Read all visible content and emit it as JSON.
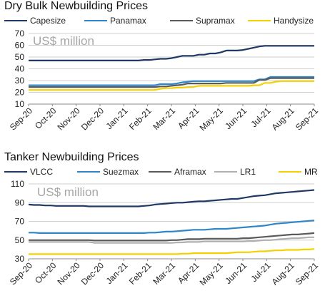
{
  "colors": {
    "dark_navy": "#1f3864",
    "blue": "#2e86c8",
    "dark_gray": "#5a5a5a",
    "light_gray": "#b0b0b0",
    "yellow": "#f5d000",
    "grid": "#cfcfcf",
    "axis": "#888888"
  },
  "chart_data": [
    {
      "type": "line",
      "title": "Dry Bulk Newbuilding Prices",
      "unit_label": "US$ million",
      "x_tick_labels": [
        "Sep-20",
        "Oct-20",
        "Nov-20",
        "Dec-20",
        "Jan-21",
        "Feb-21",
        "Mar-21",
        "Apr-21",
        "May-21",
        "Jun-21",
        "Jul-21",
        "Aug-21",
        "Sep-21"
      ],
      "y_ticks": [
        10,
        20,
        30,
        40,
        50,
        60,
        70
      ],
      "ylim": [
        10,
        70
      ],
      "grid": "horizontal",
      "legend_position": "top",
      "series": [
        {
          "name": "Capesize",
          "color": "#1f3864",
          "values": [
            47.0,
            47.0,
            47.0,
            47.0,
            47.0,
            47.0,
            47.0,
            47.0,
            47.0,
            47.0,
            47.0,
            47.0,
            47.0,
            47.0,
            47.0,
            47.0,
            47.0,
            47.0,
            47.0,
            47.0,
            47.0,
            47.5,
            47.5,
            48.0,
            48.5,
            48.5,
            49.0,
            50.0,
            51.0,
            51.0,
            51.0,
            52.0,
            52.0,
            53.0,
            53.0,
            54.0,
            55.5,
            55.5,
            55.5,
            56.0,
            57.0,
            58.0,
            59.0,
            59.5,
            59.5,
            59.5,
            59.5,
            59.5,
            59.5,
            59.5,
            59.5,
            59.5,
            59.5
          ]
        },
        {
          "name": "Panamax",
          "color": "#2e86c8",
          "values": [
            26.0,
            26.0,
            26.0,
            26.0,
            26.0,
            26.0,
            26.0,
            26.0,
            26.0,
            26.0,
            26.0,
            26.0,
            26.0,
            26.0,
            26.0,
            26.0,
            26.0,
            26.0,
            26.0,
            26.0,
            26.0,
            26.0,
            26.0,
            26.0,
            27.0,
            27.0,
            27.0,
            27.5,
            28.5,
            29.0,
            29.5,
            29.5,
            29.5,
            29.5,
            29.5,
            29.5,
            29.5,
            29.5,
            29.5,
            29.5,
            29.5,
            29.5,
            31.0,
            31.0,
            33.0,
            33.0,
            33.0,
            33.0,
            33.0,
            33.0,
            33.0,
            33.0,
            33.0
          ]
        },
        {
          "name": "Supramax",
          "color": "#5a5a5a",
          "values": [
            24.5,
            24.5,
            24.5,
            24.5,
            24.5,
            24.5,
            24.5,
            24.5,
            24.5,
            24.5,
            24.5,
            24.5,
            24.5,
            24.5,
            24.5,
            24.5,
            24.5,
            24.5,
            24.5,
            24.5,
            24.5,
            24.5,
            24.5,
            24.5,
            25.0,
            25.0,
            25.5,
            26.0,
            26.5,
            27.5,
            27.5,
            27.5,
            27.5,
            27.5,
            27.5,
            27.5,
            28.0,
            28.0,
            28.0,
            28.0,
            28.0,
            28.0,
            30.5,
            30.5,
            32.0,
            32.0,
            32.0,
            32.0,
            32.0,
            32.0,
            32.0,
            32.0,
            32.0
          ]
        },
        {
          "name": "Handysize",
          "color": "#f5d000",
          "values": [
            22.0,
            22.0,
            22.0,
            22.0,
            22.0,
            22.0,
            22.0,
            22.0,
            22.0,
            22.0,
            22.0,
            22.0,
            22.0,
            22.0,
            22.0,
            22.0,
            22.0,
            22.0,
            22.0,
            22.0,
            22.0,
            22.0,
            22.0,
            22.0,
            23.0,
            23.5,
            23.5,
            24.0,
            24.0,
            24.5,
            24.5,
            25.5,
            25.5,
            25.5,
            25.5,
            25.5,
            25.5,
            25.5,
            25.5,
            25.5,
            25.5,
            26.0,
            26.0,
            28.0,
            28.0,
            29.0,
            29.5,
            29.5,
            29.5,
            29.5,
            29.5,
            29.5,
            29.5
          ]
        }
      ]
    },
    {
      "type": "line",
      "title": "Tanker Newbuilding Prices",
      "unit_label": "US$ million",
      "x_tick_labels": [
        "Sep-20",
        "Oct-20",
        "Nov-20",
        "Dec-20",
        "Jan-21",
        "Feb-21",
        "Mar-21",
        "Apr-21",
        "May-21",
        "Jun-21",
        "Jul-21",
        "Aug-21",
        "Sep-21"
      ],
      "y_ticks": [
        30,
        50,
        70,
        90,
        110
      ],
      "ylim": [
        30,
        110
      ],
      "grid": "horizontal",
      "legend_position": "top",
      "series": [
        {
          "name": "VLCC",
          "color": "#1f3864",
          "values": [
            88.0,
            87.5,
            87.5,
            87.0,
            87.0,
            86.5,
            86.5,
            86.5,
            86.5,
            86.5,
            86.5,
            86.0,
            86.0,
            86.0,
            86.0,
            86.0,
            86.0,
            86.0,
            86.0,
            86.0,
            86.0,
            86.5,
            87.0,
            88.0,
            88.5,
            89.0,
            89.5,
            90.0,
            90.0,
            90.5,
            91.0,
            91.5,
            91.5,
            92.0,
            92.5,
            93.0,
            93.5,
            94.0,
            94.0,
            95.0,
            96.0,
            97.0,
            97.5,
            98.0,
            99.0,
            100.0,
            100.5,
            101.0,
            101.5,
            102.0,
            102.5,
            103.0,
            103.5
          ]
        },
        {
          "name": "Suezmax",
          "color": "#2e86c8",
          "values": [
            58.0,
            58.0,
            57.5,
            57.5,
            57.5,
            57.5,
            57.5,
            57.5,
            57.5,
            57.5,
            57.5,
            57.5,
            57.5,
            57.5,
            57.5,
            57.5,
            57.5,
            57.5,
            57.5,
            57.5,
            57.5,
            57.5,
            58.0,
            58.0,
            58.5,
            59.0,
            59.0,
            59.5,
            60.0,
            60.5,
            61.0,
            61.0,
            61.0,
            61.5,
            62.0,
            62.0,
            62.0,
            62.5,
            63.0,
            63.5,
            64.0,
            64.5,
            65.0,
            65.5,
            66.5,
            67.5,
            68.0,
            68.5,
            69.0,
            69.5,
            70.0,
            70.5,
            71.0
          ]
        },
        {
          "name": "Aframax",
          "color": "#5a5a5a",
          "values": [
            50.0,
            50.0,
            50.0,
            50.0,
            50.0,
            50.0,
            50.0,
            50.0,
            50.0,
            50.0,
            50.0,
            50.0,
            49.5,
            49.5,
            49.5,
            49.5,
            49.5,
            49.5,
            49.5,
            49.5,
            49.5,
            49.5,
            49.5,
            49.5,
            49.5,
            49.5,
            50.0,
            50.0,
            50.5,
            51.0,
            51.0,
            51.0,
            51.5,
            51.5,
            51.5,
            51.5,
            51.5,
            51.5,
            51.5,
            52.0,
            52.0,
            52.5,
            53.0,
            53.5,
            54.0,
            54.5,
            55.0,
            55.5,
            56.0,
            56.0,
            56.5,
            57.0,
            57.5
          ]
        },
        {
          "name": "LR1",
          "color": "#b0b0b0",
          "values": [
            48.0,
            48.0,
            48.0,
            48.0,
            48.0,
            48.0,
            48.0,
            48.0,
            48.0,
            48.0,
            48.0,
            48.0,
            47.0,
            47.0,
            47.0,
            47.0,
            47.0,
            47.0,
            47.0,
            47.0,
            47.0,
            47.0,
            47.0,
            47.0,
            47.0,
            47.0,
            47.0,
            47.5,
            47.5,
            48.0,
            48.0,
            48.0,
            48.5,
            48.5,
            48.5,
            48.5,
            48.5,
            48.5,
            48.5,
            48.5,
            49.0,
            49.0,
            49.5,
            50.0,
            50.0,
            50.5,
            51.0,
            51.5,
            52.0,
            52.0,
            52.5,
            53.0,
            53.0
          ]
        },
        {
          "name": "MR",
          "color": "#f5d000",
          "values": [
            35.0,
            35.0,
            35.0,
            35.0,
            35.0,
            35.0,
            35.0,
            35.0,
            35.0,
            35.0,
            35.0,
            35.0,
            35.0,
            35.0,
            35.0,
            35.0,
            35.0,
            35.0,
            35.0,
            35.0,
            35.0,
            35.0,
            35.0,
            35.0,
            35.0,
            35.0,
            35.0,
            35.0,
            35.5,
            35.5,
            36.0,
            36.0,
            36.0,
            36.0,
            36.0,
            36.0,
            36.0,
            36.5,
            37.0,
            37.0,
            37.0,
            37.5,
            38.0,
            38.0,
            38.5,
            39.0,
            39.0,
            39.5,
            39.5,
            39.5,
            40.0,
            40.0,
            40.5
          ]
        }
      ]
    }
  ]
}
